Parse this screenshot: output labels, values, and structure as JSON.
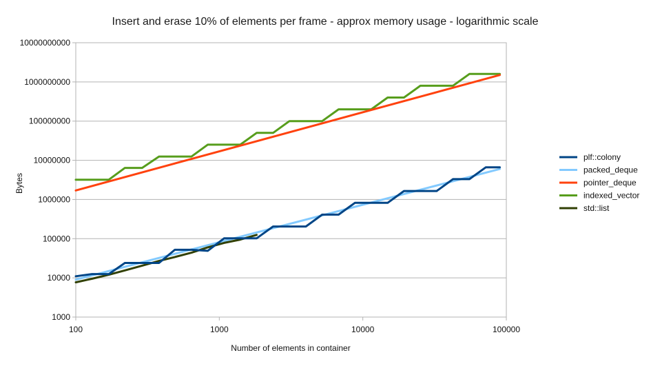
{
  "chart_data": {
    "type": "line",
    "title": "Insert and erase 10% of elements per frame - approx memory usage - logarithmic scale",
    "xlabel": "Number of elements in container",
    "ylabel": "Bytes",
    "x_scale": "log",
    "y_scale": "log",
    "xlim": [
      100,
      100000
    ],
    "ylim": [
      1000,
      10000000000
    ],
    "grid": true,
    "legend_position": "right",
    "x_ticks": [
      "100",
      "1000",
      "10000",
      "100000"
    ],
    "y_ticks": [
      "1000",
      "10000",
      "100000",
      "1000000",
      "10000000",
      "100000000",
      "1000000000",
      "10000000000"
    ],
    "series": [
      {
        "name": "plf::colony",
        "color": "#004586",
        "points": [
          [
            100,
            11000
          ],
          [
            130,
            12500
          ],
          [
            170,
            12500
          ],
          [
            220,
            24000
          ],
          [
            290,
            24000
          ],
          [
            380,
            24000
          ],
          [
            490,
            52000
          ],
          [
            640,
            52000
          ],
          [
            830,
            49000
          ],
          [
            1080,
            102000
          ],
          [
            1400,
            102000
          ],
          [
            1820,
            102000
          ],
          [
            2370,
            205000
          ],
          [
            3080,
            205000
          ],
          [
            4010,
            205000
          ],
          [
            5210,
            410000
          ],
          [
            6780,
            410000
          ],
          [
            8810,
            820000
          ],
          [
            11450,
            820000
          ],
          [
            14890,
            820000
          ],
          [
            19360,
            1650000
          ],
          [
            25170,
            1650000
          ],
          [
            32720,
            1650000
          ],
          [
            42530,
            3300000
          ],
          [
            55290,
            3300000
          ],
          [
            71880,
            6600000
          ],
          [
            90000,
            6600000
          ]
        ]
      },
      {
        "name": "packed_deque",
        "color": "#83caff",
        "points": [
          [
            100,
            9000
          ],
          [
            90000,
            6000000
          ]
        ]
      },
      {
        "name": "pointer_deque",
        "color": "#ff420e",
        "points": [
          [
            100,
            1700000
          ],
          [
            90000,
            1500000000
          ]
        ]
      },
      {
        "name": "indexed_vector",
        "color": "#579d1c",
        "points": [
          [
            100,
            3200000
          ],
          [
            170,
            3200000
          ],
          [
            220,
            6400000
          ],
          [
            290,
            6400000
          ],
          [
            380,
            12500000
          ],
          [
            640,
            12500000
          ],
          [
            830,
            25000000
          ],
          [
            1400,
            25000000
          ],
          [
            1820,
            50000000
          ],
          [
            2370,
            50000000
          ],
          [
            3080,
            100000000
          ],
          [
            5210,
            100000000
          ],
          [
            6780,
            200000000
          ],
          [
            11450,
            200000000
          ],
          [
            14890,
            400000000
          ],
          [
            19360,
            400000000
          ],
          [
            25170,
            800000000
          ],
          [
            42530,
            800000000
          ],
          [
            55290,
            1600000000
          ],
          [
            90000,
            1600000000
          ]
        ]
      },
      {
        "name": "std::list",
        "color": "#314004",
        "points": [
          [
            100,
            7700
          ],
          [
            130,
            9500
          ],
          [
            170,
            12000
          ],
          [
            220,
            15500
          ],
          [
            290,
            20500
          ],
          [
            380,
            27000
          ],
          [
            490,
            34000
          ],
          [
            640,
            44000
          ],
          [
            830,
            60000
          ],
          [
            1080,
            78000
          ],
          [
            1400,
            95000
          ],
          [
            1820,
            125000
          ]
        ]
      }
    ]
  }
}
